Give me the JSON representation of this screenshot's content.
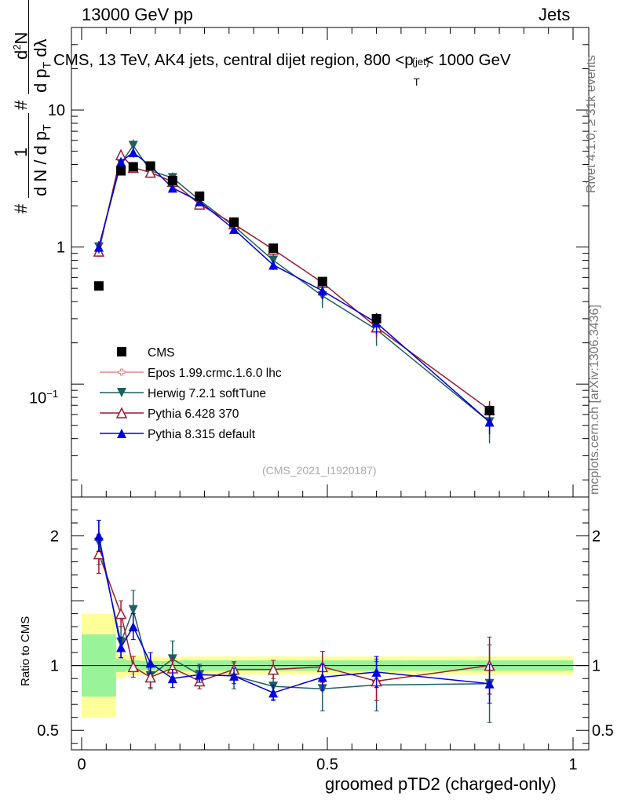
{
  "header": {
    "energy_label": "13000 GeV pp",
    "process_label": "Jets",
    "rivet_label": "Rivet 4.1.0, ≥ 31k events",
    "mcplots_label": "mcplots.cern.ch [arXiv:1306.3436]",
    "analysis_id": "(CMS_2021_I1920187)"
  },
  "chart_data": {
    "type": "scatter",
    "title": "CMS, 13 TeV, AK4 jets, central dijet region, 800 <p_T^{jet}< 1000 GeV",
    "title_parts": {
      "main": "CMS, 13 TeV, AK4 jets, central dijet region, 800 <p",
      "sub": "T",
      "sup": "{jet}",
      "tail": "< 1000 GeV"
    },
    "ylabel_parts": {
      "hash": "#",
      "one": "1",
      "denominator": "d N / d p",
      "denominator_sub": "T",
      "hash2": "#",
      "numerator": "d",
      "numerator_sup": "2",
      "numerator_tail": "N",
      "den2": "d p",
      "den2_sub": "T",
      "den2_tail": " dλ"
    },
    "xlabel": "groomed pTD2 (charged-only)",
    "ratio_ylabel": "Ratio to CMS",
    "xlim": [
      0,
      1
    ],
    "ylim_main": [
      0.015,
      40
    ],
    "ylim_ratio": [
      0.35,
      2.3
    ],
    "yscale_main": "log",
    "x_ticks": [
      "0",
      "0.5",
      "1"
    ],
    "main_y_ticks": [
      "10",
      "1"
    ],
    "main_y_tick_sci": {
      "base": "10",
      "exp": "−1"
    },
    "ratio_y_ticks": [
      "2",
      "1",
      "0.5"
    ],
    "legend_position": "lower-left",
    "bin_edges": [
      0.0,
      0.07,
      0.09,
      0.12,
      0.16,
      0.2,
      0.27,
      0.33,
      0.44,
      0.54,
      0.66,
      1.0
    ],
    "band_inner_halfwidth": [
      0.24,
      0.05,
      0.04,
      0.035,
      0.035,
      0.04,
      0.04,
      0.04,
      0.04,
      0.04,
      0.04
    ],
    "band_outer_halfwidth": [
      0.4,
      0.1,
      0.08,
      0.07,
      0.06,
      0.07,
      0.07,
      0.07,
      0.07,
      0.07,
      0.07
    ],
    "x": [
      0.035,
      0.08,
      0.105,
      0.14,
      0.185,
      0.24,
      0.31,
      0.39,
      0.49,
      0.6,
      0.83
    ],
    "series": [
      {
        "name": "CMS",
        "color": "#000000",
        "marker": "square",
        "values": [
          0.52,
          3.6,
          3.85,
          3.9,
          3.05,
          2.35,
          1.52,
          0.98,
          0.56,
          0.3,
          0.064
        ],
        "errors": [
          0.01,
          0.05,
          0.05,
          0.05,
          0.05,
          0.04,
          0.03,
          0.02,
          0.015,
          0.01,
          0.004
        ],
        "ratio": [
          1,
          1,
          1,
          1,
          1,
          1,
          1,
          1,
          1,
          1,
          1
        ],
        "ratio_errors": [
          0,
          0,
          0,
          0,
          0,
          0,
          0,
          0,
          0,
          0,
          0
        ]
      },
      {
        "name": "Epos 1.99.crmc.1.6.0 lhc",
        "color": "#f08080",
        "marker": "open-cross",
        "values": [],
        "errors": [],
        "ratio": [],
        "ratio_errors": []
      },
      {
        "name": "Herwig 7.2.1 softTune",
        "color": "#1f5f5f",
        "marker": "triangle-down",
        "values": [
          1.0,
          4.1,
          5.5,
          3.6,
          3.2,
          2.2,
          1.42,
          0.8,
          0.44,
          0.25,
          0.053
        ],
        "errors": [
          0.1,
          0.3,
          0.6,
          0.3,
          0.3,
          0.15,
          0.15,
          0.1,
          0.08,
          0.06,
          0.016
        ],
        "ratio": [
          1.95,
          1.18,
          1.43,
          0.92,
          1.05,
          0.93,
          0.92,
          0.84,
          0.82,
          0.85,
          0.86
        ],
        "ratio_errors": [
          0.17,
          0.12,
          0.15,
          0.1,
          0.14,
          0.08,
          0.1,
          0.1,
          0.17,
          0.2,
          0.3
        ]
      },
      {
        "name": "Pythia 6.428 370",
        "color": "#9b1c31",
        "marker": "triangle-open",
        "values": [
          0.93,
          4.7,
          3.8,
          3.5,
          3.0,
          2.05,
          1.47,
          0.96,
          0.55,
          0.26,
          0.065
        ],
        "errors": [
          0.08,
          0.3,
          0.3,
          0.3,
          0.2,
          0.15,
          0.1,
          0.08,
          0.05,
          0.04,
          0.01
        ],
        "ratio": [
          1.86,
          1.4,
          0.99,
          0.91,
          0.98,
          0.88,
          0.97,
          0.97,
          0.99,
          0.88,
          1.0
        ],
        "ratio_errors": [
          0.15,
          0.1,
          0.08,
          0.08,
          0.08,
          0.06,
          0.06,
          0.07,
          0.12,
          0.15,
          0.22
        ]
      },
      {
        "name": "Pythia 8.315 default",
        "color": "#0000dd",
        "marker": "triangle-up",
        "values": [
          1.0,
          4.2,
          4.9,
          3.9,
          2.7,
          2.15,
          1.35,
          0.74,
          0.48,
          0.28,
          0.053
        ],
        "errors": [
          0.1,
          0.3,
          0.4,
          0.3,
          0.2,
          0.1,
          0.1,
          0.06,
          0.06,
          0.05,
          0.01
        ],
        "ratio": [
          2.0,
          1.14,
          1.3,
          1.02,
          0.9,
          0.93,
          0.92,
          0.79,
          0.91,
          0.95,
          0.86
        ],
        "ratio_errors": [
          0.12,
          0.08,
          0.1,
          0.08,
          0.07,
          0.06,
          0.06,
          0.06,
          0.1,
          0.12,
          0.15
        ]
      }
    ]
  }
}
